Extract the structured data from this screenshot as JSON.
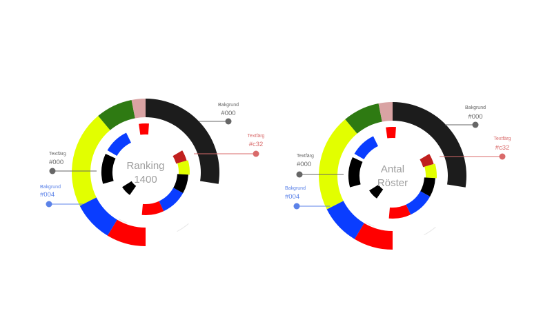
{
  "colors": {
    "black": "#1c1c1c",
    "pink": "#d9a3a3",
    "green": "#2e7a12",
    "yellow": "#e2ff00",
    "blue": "#0a3dff",
    "red": "#ff0000",
    "darkred": "#c0201e",
    "inner_black": "#000000",
    "callout_gray": "#666666",
    "callout_red": "#d96a6a",
    "callout_blue": "#5b82e8",
    "center_text": "#9e9e9e"
  },
  "diagrams": [
    {
      "center_lines": [
        "Ranking",
        "1400"
      ],
      "callouts": [
        {
          "title": "Bakgrund",
          "value": "#000",
          "color_key": "callout_gray"
        },
        {
          "title": "Textfärg",
          "value": "#c32",
          "color_key": "callout_red"
        },
        {
          "title": "Textfärg",
          "value": "#000",
          "color_key": "callout_gray"
        },
        {
          "title": "Bakgrund",
          "value": "#004",
          "color_key": "callout_blue"
        }
      ]
    },
    {
      "center_lines": [
        "Antal",
        "Röster"
      ],
      "callouts": [
        {
          "title": "Bakgrund",
          "value": "#000",
          "color_key": "callout_gray"
        },
        {
          "title": "Textfärg",
          "value": "#c32",
          "color_key": "callout_red"
        },
        {
          "title": "Textfärg",
          "value": "#000",
          "color_key": "callout_gray"
        },
        {
          "title": "Bakgrund",
          "value": "#004",
          "color_key": "callout_blue"
        }
      ]
    }
  ]
}
